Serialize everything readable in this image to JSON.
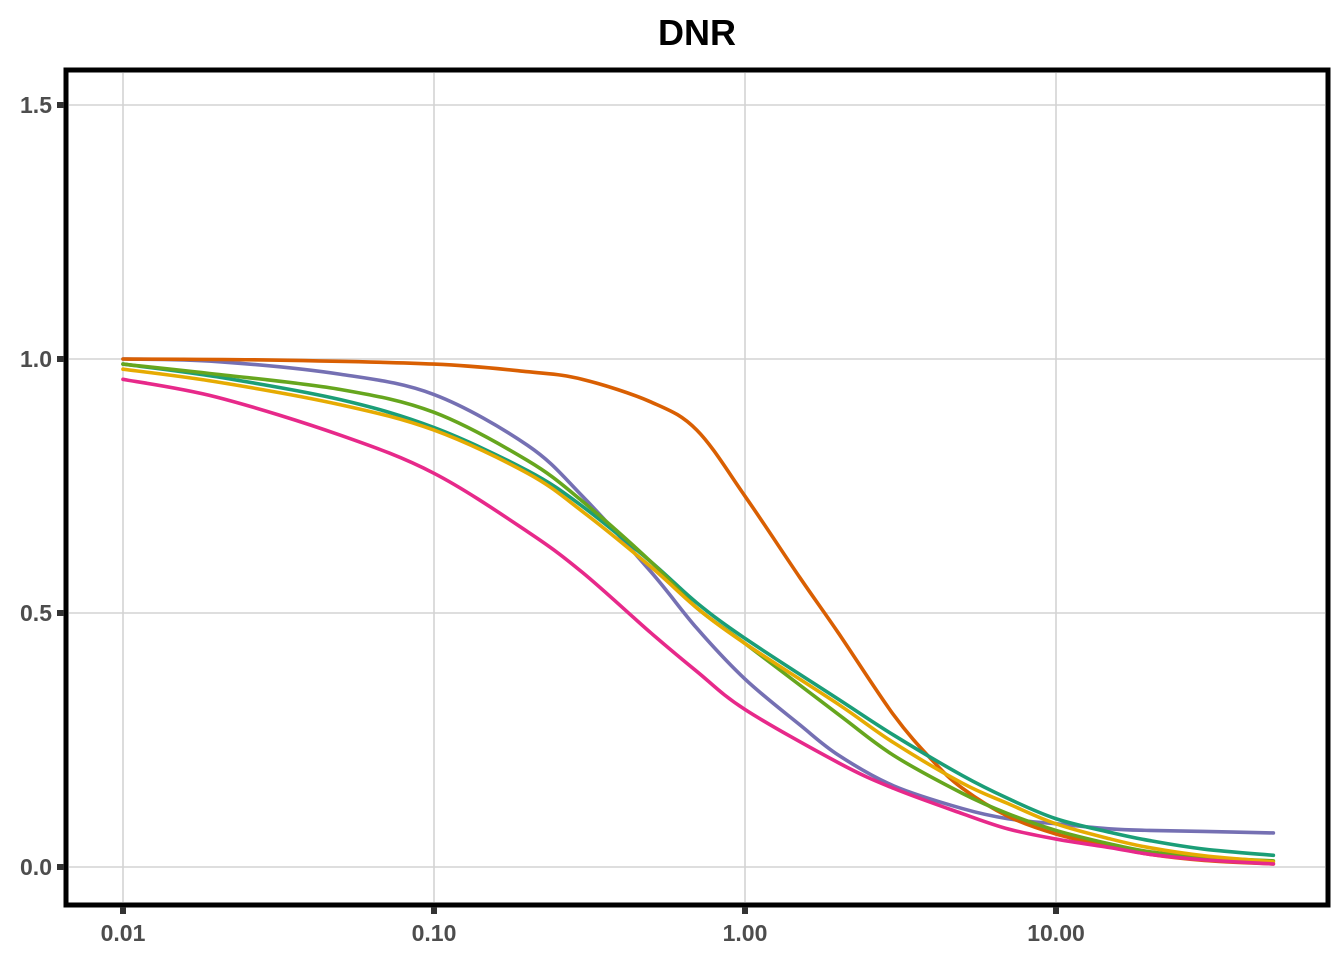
{
  "chart_data": {
    "type": "line",
    "title": "DNR",
    "xlabel": "",
    "ylabel": "",
    "x_scale": "log",
    "xlim": [
      0.01,
      50
    ],
    "ylim": [
      -0.07,
      1.58
    ],
    "x_ticks": [
      {
        "value": 0.01,
        "label": "0.01"
      },
      {
        "value": 0.1,
        "label": "0.10"
      },
      {
        "value": 1,
        "label": "1.00"
      },
      {
        "value": 10,
        "label": "10.00"
      }
    ],
    "y_ticks": [
      {
        "value": 0.0,
        "label": "0.0"
      },
      {
        "value": 0.5,
        "label": "0.5"
      },
      {
        "value": 1.0,
        "label": "1.0"
      },
      {
        "value": 1.5,
        "label": "1.5"
      }
    ],
    "grid": true,
    "legend": "none",
    "series": [
      {
        "color": "#7570b3",
        "points": [
          [
            0.01,
            1.0
          ],
          [
            0.02,
            0.995
          ],
          [
            0.05,
            0.97
          ],
          [
            0.1,
            0.93
          ],
          [
            0.2,
            0.83
          ],
          [
            0.3,
            0.73
          ],
          [
            0.5,
            0.58
          ],
          [
            0.7,
            0.47
          ],
          [
            1.0,
            0.37
          ],
          [
            1.5,
            0.28
          ],
          [
            2.0,
            0.22
          ],
          [
            3.0,
            0.16
          ],
          [
            5.0,
            0.115
          ],
          [
            7.0,
            0.095
          ],
          [
            10.0,
            0.085
          ],
          [
            15.0,
            0.075
          ],
          [
            20.0,
            0.072
          ],
          [
            30.0,
            0.07
          ],
          [
            50.0,
            0.067
          ]
        ]
      },
      {
        "color": "#d95f02",
        "points": [
          [
            0.01,
            1.0
          ],
          [
            0.03,
            0.998
          ],
          [
            0.1,
            0.99
          ],
          [
            0.2,
            0.975
          ],
          [
            0.3,
            0.96
          ],
          [
            0.5,
            0.915
          ],
          [
            0.7,
            0.86
          ],
          [
            1.0,
            0.73
          ],
          [
            1.5,
            0.57
          ],
          [
            2.0,
            0.46
          ],
          [
            3.0,
            0.3
          ],
          [
            4.0,
            0.21
          ],
          [
            5.0,
            0.155
          ],
          [
            7.0,
            0.1
          ],
          [
            10.0,
            0.065
          ],
          [
            15.0,
            0.04
          ],
          [
            20.0,
            0.025
          ],
          [
            30.0,
            0.013
          ],
          [
            50.0,
            0.006
          ]
        ]
      },
      {
        "color": "#1b9e77",
        "points": [
          [
            0.01,
            0.99
          ],
          [
            0.02,
            0.965
          ],
          [
            0.05,
            0.92
          ],
          [
            0.1,
            0.865
          ],
          [
            0.2,
            0.78
          ],
          [
            0.3,
            0.71
          ],
          [
            0.5,
            0.6
          ],
          [
            0.7,
            0.52
          ],
          [
            1.0,
            0.45
          ],
          [
            2.0,
            0.33
          ],
          [
            3.0,
            0.26
          ],
          [
            5.0,
            0.18
          ],
          [
            7.0,
            0.135
          ],
          [
            10.0,
            0.095
          ],
          [
            15.0,
            0.068
          ],
          [
            20.0,
            0.052
          ],
          [
            30.0,
            0.035
          ],
          [
            50.0,
            0.023
          ]
        ]
      },
      {
        "color": "#66a61e",
        "points": [
          [
            0.01,
            0.99
          ],
          [
            0.02,
            0.97
          ],
          [
            0.05,
            0.94
          ],
          [
            0.1,
            0.895
          ],
          [
            0.2,
            0.8
          ],
          [
            0.3,
            0.72
          ],
          [
            0.5,
            0.6
          ],
          [
            0.7,
            0.51
          ],
          [
            1.0,
            0.44
          ],
          [
            2.0,
            0.3
          ],
          [
            3.0,
            0.22
          ],
          [
            5.0,
            0.145
          ],
          [
            7.0,
            0.105
          ],
          [
            10.0,
            0.072
          ],
          [
            15.0,
            0.045
          ],
          [
            20.0,
            0.03
          ],
          [
            30.0,
            0.019
          ],
          [
            50.0,
            0.012
          ]
        ]
      },
      {
        "color": "#e6ab02",
        "points": [
          [
            0.01,
            0.98
          ],
          [
            0.02,
            0.955
          ],
          [
            0.05,
            0.91
          ],
          [
            0.1,
            0.86
          ],
          [
            0.2,
            0.775
          ],
          [
            0.3,
            0.7
          ],
          [
            0.5,
            0.59
          ],
          [
            0.7,
            0.51
          ],
          [
            1.0,
            0.44
          ],
          [
            2.0,
            0.32
          ],
          [
            3.0,
            0.245
          ],
          [
            5.0,
            0.165
          ],
          [
            7.0,
            0.125
          ],
          [
            10.0,
            0.085
          ],
          [
            15.0,
            0.055
          ],
          [
            20.0,
            0.038
          ],
          [
            30.0,
            0.022
          ],
          [
            50.0,
            0.01
          ]
        ]
      },
      {
        "color": "#e7298a",
        "points": [
          [
            0.01,
            0.96
          ],
          [
            0.02,
            0.925
          ],
          [
            0.05,
            0.85
          ],
          [
            0.1,
            0.775
          ],
          [
            0.2,
            0.66
          ],
          [
            0.3,
            0.58
          ],
          [
            0.5,
            0.46
          ],
          [
            0.7,
            0.385
          ],
          [
            1.0,
            0.31
          ],
          [
            2.0,
            0.205
          ],
          [
            3.0,
            0.155
          ],
          [
            5.0,
            0.105
          ],
          [
            7.0,
            0.075
          ],
          [
            10.0,
            0.055
          ],
          [
            15.0,
            0.038
          ],
          [
            20.0,
            0.025
          ],
          [
            30.0,
            0.014
          ],
          [
            50.0,
            0.006
          ]
        ]
      }
    ]
  }
}
